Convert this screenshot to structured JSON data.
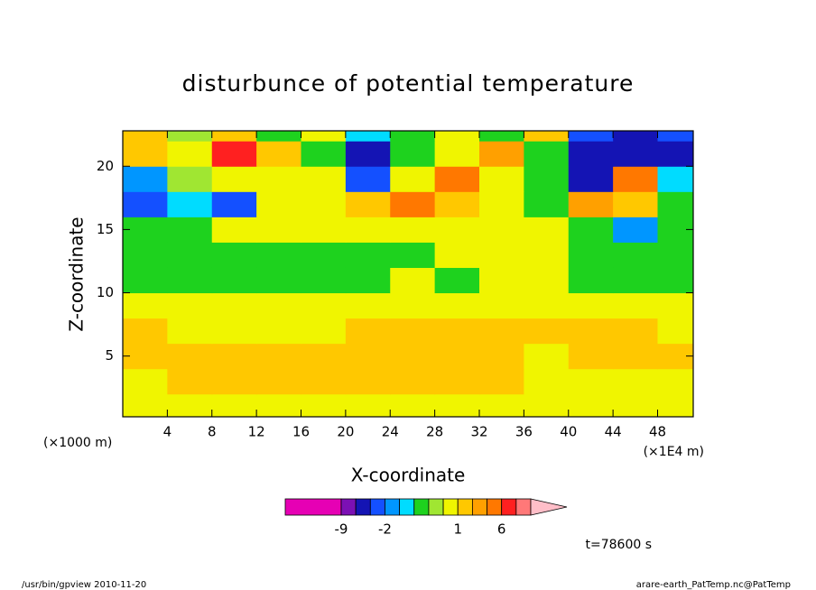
{
  "chart_data": {
    "type": "contour",
    "title": "disturbunce of potential temperature",
    "xlabel": "X-coordinate",
    "ylabel": "Z-coordinate",
    "ylabel_unit": "(×1000 m)",
    "xlabel_unit": "(×1E4 m)",
    "annotation": "t=78600 s",
    "xlim": [
      0,
      51.2
    ],
    "ylim": [
      0.2,
      22.8
    ],
    "xticks": [
      4,
      8,
      12,
      16,
      20,
      24,
      28,
      32,
      36,
      40,
      44,
      48
    ],
    "yticks": [
      5,
      10,
      15,
      20
    ],
    "x": [
      2,
      6,
      10,
      14,
      18,
      22,
      26,
      30,
      34,
      38,
      42,
      46,
      50
    ],
    "y": [
      1,
      3,
      5,
      7,
      9,
      11,
      13,
      15,
      17,
      19,
      21,
      23
    ],
    "values": [
      [
        0.5,
        0.5,
        0.5,
        0.5,
        0.5,
        0.5,
        0.5,
        0.5,
        0.5,
        0.5,
        0.5,
        0.5,
        0.5
      ],
      [
        0.6,
        1.2,
        1.1,
        1.2,
        1.2,
        1.3,
        1.3,
        1.2,
        1.2,
        0.8,
        0.6,
        0.6,
        0.5
      ],
      [
        1.5,
        1.5,
        1.5,
        1.5,
        1.5,
        1.5,
        1.5,
        1.5,
        1.5,
        0.9,
        1.5,
        1.5,
        1.5
      ],
      [
        1.1,
        0.9,
        0.8,
        0.8,
        0.9,
        1.0,
        1.2,
        1.2,
        1.2,
        1.1,
        1.0,
        1.2,
        0.9
      ],
      [
        0.4,
        0.4,
        0.4,
        0.4,
        0.4,
        0.4,
        0.4,
        0.4,
        0.4,
        0.4,
        0.4,
        0.4,
        0.4
      ],
      [
        -0.7,
        -0.7,
        -0.7,
        -0.7,
        -0.7,
        -0.6,
        0.3,
        -0.6,
        0.3,
        0.3,
        -0.6,
        -0.7,
        -0.7
      ],
      [
        -0.7,
        -0.7,
        -0.7,
        -0.7,
        -0.7,
        -0.7,
        -0.7,
        0.4,
        0.4,
        0.3,
        -0.7,
        -0.7,
        -0.7
      ],
      [
        -0.8,
        -0.6,
        0.3,
        0.3,
        0.3,
        0.4,
        0.4,
        0.5,
        0.4,
        0.3,
        -0.7,
        -1.8,
        -0.7
      ],
      [
        -2.5,
        -1.3,
        -2.5,
        0.3,
        0.5,
        1.5,
        3,
        1.2,
        0.5,
        -0.7,
        2,
        1.5,
        -0.7
      ],
      [
        -1.8,
        -0.5,
        0.4,
        0.3,
        0.6,
        -2.5,
        0.6,
        3.5,
        0.5,
        -0.7,
        -3.5,
        4,
        -1.5
      ],
      [
        1.5,
        0.3,
        7,
        1.5,
        -0.6,
        -3.5,
        -0.7,
        0.4,
        2.5,
        -0.7,
        -3.5,
        -4.5,
        -3.5
      ],
      [
        1.2,
        -0.4,
        1.5,
        -0.6,
        0.6,
        -1.3,
        -0.6,
        0.4,
        -0.6,
        1.2,
        -3,
        -4,
        -2.5
      ]
    ],
    "colorbar": {
      "levels": [
        -9,
        -6,
        -3,
        -2,
        -1.5,
        -1,
        -0.5,
        0,
        1,
        2,
        3,
        6,
        9,
        12
      ],
      "colors": [
        "#e600b4",
        "#7c10b4",
        "#1414b4",
        "#1450ff",
        "#0096ff",
        "#00dcff",
        "#1ed21e",
        "#a0e632",
        "#f0f500",
        "#ffc800",
        "#ffa000",
        "#ff7800",
        "#ff2020",
        "#ff7878",
        "#ffbec8"
      ],
      "ticks": [
        -9,
        -2,
        1,
        6
      ]
    }
  },
  "footer": {
    "left": "/usr/bin/gpview  2010-11-20",
    "right": "arare-earth_PatTemp.nc@PatTemp"
  }
}
